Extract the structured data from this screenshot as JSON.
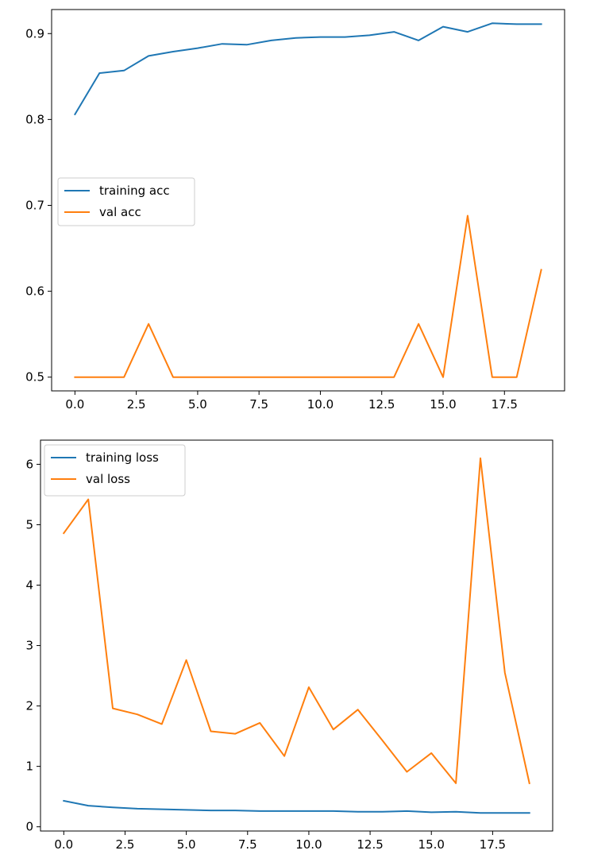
{
  "chart_data": [
    {
      "type": "line",
      "title": "",
      "xlabel": "",
      "ylabel": "",
      "x": [
        0,
        1,
        2,
        3,
        4,
        5,
        6,
        7,
        8,
        9,
        10,
        11,
        12,
        13,
        14,
        15,
        16,
        17,
        18,
        19
      ],
      "xlim": [
        -0.95,
        19.95
      ],
      "ylim": [
        0.484,
        0.928
      ],
      "xticks": [
        0.0,
        2.5,
        5.0,
        7.5,
        10.0,
        12.5,
        15.0,
        17.5
      ],
      "xtick_labels": [
        "0.0",
        "2.5",
        "5.0",
        "7.5",
        "10.0",
        "12.5",
        "15.0",
        "17.5"
      ],
      "yticks": [
        0.5,
        0.6,
        0.7,
        0.8,
        0.9
      ],
      "ytick_labels": [
        "0.5",
        "0.6",
        "0.7",
        "0.8",
        "0.9"
      ],
      "grid": false,
      "legend_position": "center-left",
      "series": [
        {
          "name": "training acc",
          "color": "#1f77b4",
          "values": [
            0.806,
            0.854,
            0.857,
            0.874,
            0.879,
            0.883,
            0.888,
            0.887,
            0.892,
            0.895,
            0.896,
            0.896,
            0.898,
            0.902,
            0.892,
            0.908,
            0.902,
            0.912,
            0.911,
            0.911
          ]
        },
        {
          "name": "val acc",
          "color": "#ff7f0e",
          "values": [
            0.5,
            0.5,
            0.5,
            0.562,
            0.5,
            0.5,
            0.5,
            0.5,
            0.5,
            0.5,
            0.5,
            0.5,
            0.5,
            0.5,
            0.562,
            0.5,
            0.688,
            0.5,
            0.5,
            0.625
          ]
        }
      ]
    },
    {
      "type": "line",
      "title": "",
      "xlabel": "",
      "ylabel": "",
      "x": [
        0,
        1,
        2,
        3,
        4,
        5,
        6,
        7,
        8,
        9,
        10,
        11,
        12,
        13,
        14,
        15,
        16,
        17,
        18,
        19
      ],
      "xlim": [
        -0.95,
        19.95
      ],
      "ylim": [
        -0.07,
        6.4
      ],
      "xticks": [
        0.0,
        2.5,
        5.0,
        7.5,
        10.0,
        12.5,
        15.0,
        17.5
      ],
      "xtick_labels": [
        "0.0",
        "2.5",
        "5.0",
        "7.5",
        "10.0",
        "12.5",
        "15.0",
        "17.5"
      ],
      "yticks": [
        0,
        1,
        2,
        3,
        4,
        5,
        6
      ],
      "ytick_labels": [
        "0",
        "1",
        "2",
        "3",
        "4",
        "5",
        "6"
      ],
      "grid": false,
      "legend_position": "top-left",
      "series": [
        {
          "name": "training loss",
          "color": "#1f77b4",
          "values": [
            0.43,
            0.35,
            0.32,
            0.3,
            0.29,
            0.28,
            0.27,
            0.27,
            0.26,
            0.26,
            0.26,
            0.26,
            0.25,
            0.25,
            0.26,
            0.24,
            0.25,
            0.23,
            0.23,
            0.23
          ]
        },
        {
          "name": "val loss",
          "color": "#ff7f0e",
          "values": [
            4.86,
            5.42,
            1.96,
            1.86,
            1.7,
            2.76,
            1.58,
            1.54,
            1.72,
            1.17,
            2.31,
            1.61,
            1.94,
            1.43,
            0.91,
            1.22,
            0.72,
            6.1,
            2.55,
            0.72
          ]
        }
      ]
    }
  ]
}
